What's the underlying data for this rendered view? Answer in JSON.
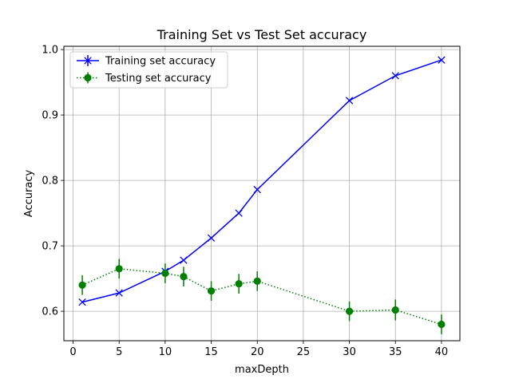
{
  "chart_data": {
    "type": "line",
    "title": "Training Set vs Test Set accuracy",
    "xlabel": "maxDepth",
    "ylabel": "Accuracy",
    "xlim": [
      -1,
      42
    ],
    "ylim": [
      0.555,
      1.005
    ],
    "xticks": [
      0,
      5,
      10,
      15,
      20,
      25,
      30,
      35,
      40
    ],
    "yticks": [
      0.6,
      0.7,
      0.8,
      0.9,
      1.0
    ],
    "ytick_labels": [
      "0.6",
      "0.7",
      "0.8",
      "0.9",
      "1.0"
    ],
    "grid": true,
    "legend_position": "top-left",
    "x": [
      1,
      5,
      10,
      12,
      15,
      18,
      20,
      30,
      35,
      40
    ],
    "series": [
      {
        "name": "Training set accuracy",
        "color": "#0000ff",
        "marker": "x",
        "linestyle": "solid",
        "values": [
          0.614,
          0.628,
          0.661,
          0.678,
          0.712,
          0.75,
          0.786,
          0.922,
          0.96,
          0.984
        ]
      },
      {
        "name": "Testing set accuracy",
        "color": "#008000",
        "marker": "o",
        "linestyle": "dotted",
        "values": [
          0.64,
          0.665,
          0.658,
          0.653,
          0.631,
          0.642,
          0.646,
          0.6,
          0.602,
          0.58
        ],
        "errors": [
          0.015,
          0.015,
          0.015,
          0.015,
          0.015,
          0.015,
          0.015,
          0.015,
          0.016,
          0.015
        ]
      }
    ]
  }
}
